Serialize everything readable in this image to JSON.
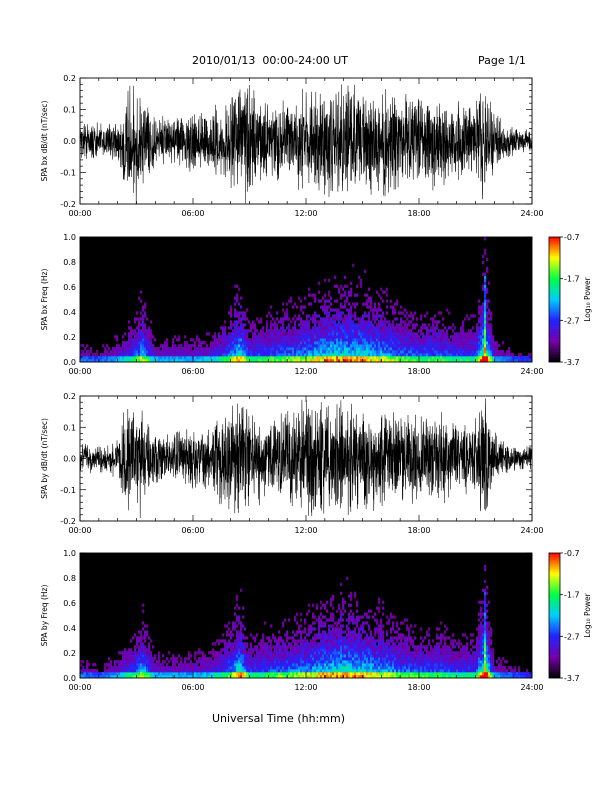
{
  "header": {
    "title": "2010/01/13  00:00-24:00 UT",
    "page": "Page 1/1"
  },
  "x_axis_title": "Universal Time (hh:mm)",
  "chart_data": [
    {
      "type": "line",
      "ylabel": "SPA bx dB/dt (nT/sec)",
      "xlim": [
        0,
        24
      ],
      "ylim": [
        -0.2,
        0.2
      ],
      "xticks": [
        "00:00",
        "06:00",
        "12:00",
        "18:00",
        "24:00"
      ],
      "yticks": [
        "-0.2",
        "-0.1",
        "0.0",
        "0.1",
        "0.2"
      ],
      "envelope": {
        "x": [
          0,
          1,
          2,
          2.5,
          3,
          3.3,
          4,
          5,
          6,
          7,
          8,
          8.5,
          9,
          10,
          11,
          12,
          13,
          14,
          15,
          16,
          17,
          18,
          19,
          20,
          21,
          21.5,
          22,
          23,
          24
        ],
        "amplitude": [
          0.07,
          0.06,
          0.08,
          0.22,
          0.22,
          0.18,
          0.09,
          0.09,
          0.1,
          0.11,
          0.16,
          0.22,
          0.2,
          0.14,
          0.14,
          0.18,
          0.2,
          0.21,
          0.2,
          0.2,
          0.16,
          0.17,
          0.16,
          0.14,
          0.13,
          0.22,
          0.1,
          0.05,
          0.04
        ]
      },
      "color": "#000000"
    },
    {
      "type": "heatmap",
      "ylabel": "SPA bx Freq (Hz)",
      "xlim": [
        0,
        24
      ],
      "ylim": [
        0.0,
        1.0
      ],
      "xticks": [
        "00:00",
        "06:00",
        "12:00",
        "18:00",
        "24:00"
      ],
      "yticks": [
        "0.0",
        "0.2",
        "0.4",
        "0.6",
        "0.8",
        "1.0"
      ],
      "colorbar": {
        "label": "Log₁₀ Power",
        "ticks": [
          "-0.7",
          "-1.7",
          "-2.7",
          "-3.7"
        ],
        "range": [
          -3.7,
          -0.7
        ]
      },
      "colormap": [
        "#000000",
        "#7700aa",
        "#2222ff",
        "#00ccff",
        "#00ff44",
        "#ffff00",
        "#ff0000"
      ],
      "activity": {
        "x": [
          0,
          1,
          2,
          3,
          3.3,
          4,
          5,
          6,
          7,
          8,
          8.5,
          9,
          10,
          11,
          12,
          13,
          14,
          15,
          16,
          17,
          18,
          19,
          20,
          21,
          21.5,
          22,
          23,
          24
        ],
        "level": [
          0.3,
          0.25,
          0.35,
          0.55,
          0.7,
          0.35,
          0.35,
          0.35,
          0.4,
          0.6,
          0.8,
          0.5,
          0.55,
          0.6,
          0.65,
          0.75,
          0.8,
          0.75,
          0.7,
          0.6,
          0.55,
          0.55,
          0.5,
          0.5,
          1.0,
          0.35,
          0.25,
          0.2
        ]
      }
    },
    {
      "type": "line",
      "ylabel": "SPA by dB/dt (nT/sec)",
      "xlim": [
        0,
        24
      ],
      "ylim": [
        -0.2,
        0.2
      ],
      "xticks": [
        "00:00",
        "06:00",
        "12:00",
        "18:00",
        "24:00"
      ],
      "yticks": [
        "-0.2",
        "-0.1",
        "0.0",
        "0.1",
        "0.2"
      ],
      "envelope": {
        "x": [
          0,
          1,
          2,
          2.5,
          3,
          3.3,
          4,
          5,
          6,
          7,
          8,
          8.5,
          9,
          10,
          11,
          12,
          13,
          14,
          15,
          16,
          17,
          18,
          19,
          20,
          21,
          21.5,
          22,
          23,
          24
        ],
        "amplitude": [
          0.06,
          0.05,
          0.07,
          0.22,
          0.22,
          0.18,
          0.09,
          0.1,
          0.11,
          0.13,
          0.2,
          0.22,
          0.17,
          0.14,
          0.17,
          0.22,
          0.22,
          0.19,
          0.19,
          0.18,
          0.17,
          0.16,
          0.16,
          0.14,
          0.14,
          0.22,
          0.1,
          0.05,
          0.04
        ]
      },
      "color": "#000000"
    },
    {
      "type": "heatmap",
      "ylabel": "SPA by Freq (Hz)",
      "xlim": [
        0,
        24
      ],
      "ylim": [
        0.0,
        1.0
      ],
      "xticks": [
        "00:00",
        "06:00",
        "12:00",
        "18:00",
        "24:00"
      ],
      "yticks": [
        "0.0",
        "0.2",
        "0.4",
        "0.6",
        "0.8",
        "1.0"
      ],
      "colorbar": {
        "label": "Log₁₀ Power",
        "ticks": [
          "-0.7",
          "-1.7",
          "-2.7",
          "-3.7"
        ],
        "range": [
          -3.7,
          -0.7
        ]
      },
      "colormap": [
        "#000000",
        "#7700aa",
        "#2222ff",
        "#00ccff",
        "#00ff44",
        "#ffff00",
        "#ff0000"
      ],
      "activity": {
        "x": [
          0,
          1,
          2,
          3,
          3.3,
          4,
          5,
          6,
          7,
          8,
          8.5,
          9,
          10,
          11,
          12,
          13,
          14,
          15,
          16,
          17,
          18,
          19,
          20,
          21,
          21.5,
          22,
          23,
          24
        ],
        "level": [
          0.3,
          0.25,
          0.35,
          0.55,
          0.7,
          0.35,
          0.35,
          0.35,
          0.4,
          0.6,
          0.8,
          0.5,
          0.55,
          0.6,
          0.65,
          0.75,
          0.8,
          0.75,
          0.7,
          0.6,
          0.55,
          0.55,
          0.5,
          0.5,
          1.0,
          0.35,
          0.25,
          0.2
        ]
      }
    }
  ]
}
